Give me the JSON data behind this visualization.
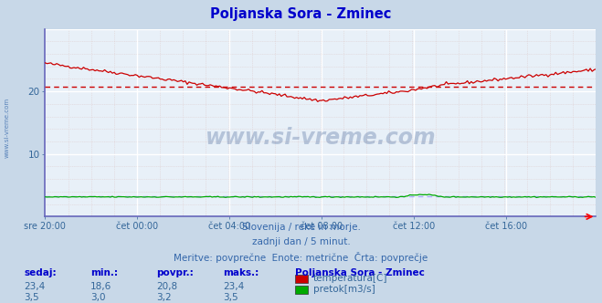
{
  "title": "Poljanska Sora - Zminec",
  "title_color": "#0000cc",
  "bg_color": "#c8d8e8",
  "plot_bg_color": "#e8f0f8",
  "grid_major_color": "#ffffff",
  "grid_minor_color": "#ddc8c8",
  "axis_color": "#6666aa",
  "x_tick_labels": [
    "sre 20:00",
    "čet 00:00",
    "čet 04:00",
    "čet 08:00",
    "čet 12:00",
    "čet 16:00"
  ],
  "x_tick_positions": [
    0,
    48,
    96,
    144,
    192,
    240
  ],
  "total_points": 288,
  "ylim": [
    0,
    30
  ],
  "yticks": [
    10,
    20
  ],
  "tick_label_color": "#336699",
  "temp_color": "#cc0000",
  "flow_color": "#00aa00",
  "flow_line_color": "#0000cc",
  "avg_temp": 20.8,
  "avg_flow": 3.2,
  "avg_temp_color": "#cc0000",
  "avg_flow_color": "#aaaaff",
  "watermark": "www.si-vreme.com",
  "watermark_color": "#1a4080",
  "watermark_alpha": 0.25,
  "footer_line1": "Slovenija / reke in morje.",
  "footer_line2": "zadnji dan / 5 minut.",
  "footer_line3": "Meritve: povprečne  Enote: metrične  Črta: povprečje",
  "footer_color": "#3366aa",
  "legend_title": "Poljanska Sora - Zminec",
  "legend_title_color": "#0000cc",
  "legend_color": "#336699",
  "sedaj_temp": "23,4",
  "min_temp": "18,6",
  "povpr_temp": "20,8",
  "maks_temp": "23,4",
  "sedaj_flow": "3,5",
  "min_flow": "3,0",
  "povpr_flow": "3,2",
  "maks_flow": "3,5",
  "label_color": "#3366aa",
  "value_color": "#336699",
  "side_label": "www.si-vreme.com",
  "side_label_color": "#3366aa",
  "left_spine_color": "#6666bb",
  "bottom_spine_color": "#6666bb"
}
